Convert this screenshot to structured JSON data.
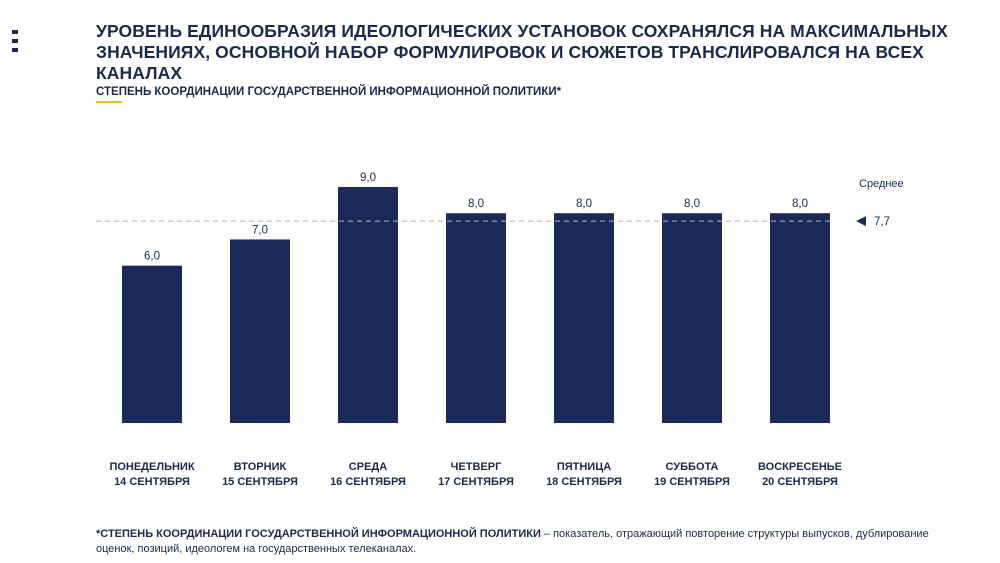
{
  "header": {
    "title": "УРОВЕНЬ ЕДИНООБРАЗИЯ ИДЕОЛОГИЧЕСКИХ УСТАНОВОК СОХРАНЯЛСЯ НА МАКСИМАЛЬНЫХ ЗНАЧЕНИЯХ, ОСНОВНОЙ НАБОР ФОРМУЛИРОВОК И СЮЖЕТОВ ТРАНСЛИРОВАЛСЯ НА ВСЕХ КАНАЛАХ",
    "subtitle": "СТЕПЕНЬ КООРДИНАЦИИ ГОСУДАРСТВЕННОЙ ИНФОРМАЦИОННОЙ ПОЛИТИКИ*"
  },
  "colors": {
    "bar": "#1b2a58",
    "accent": "#f2c500",
    "text": "#1b2a4a",
    "avg_line": "#b0b0b0"
  },
  "icons": {
    "menu": "menu-icon"
  },
  "chart_data": {
    "type": "bar",
    "categories": [
      [
        "ПОНЕДЕЛЬНИК",
        "14 СЕНТЯБРЯ"
      ],
      [
        "ВТОРНИК",
        "15 СЕНТЯБРЯ"
      ],
      [
        "СРЕДА",
        "16 СЕНТЯБРЯ"
      ],
      [
        "ЧЕТВЕРГ",
        "17 СЕНТЯБРЯ"
      ],
      [
        "ПЯТНИЦА",
        "18 СЕНТЯБРЯ"
      ],
      [
        "СУББОТА",
        "19 СЕНТЯБРЯ"
      ],
      [
        "ВОСКРЕСЕНЬЕ",
        "20 СЕНТЯБРЯ"
      ]
    ],
    "values": [
      6.0,
      7.0,
      9.0,
      8.0,
      8.0,
      8.0,
      8.0
    ],
    "value_labels": [
      "6,0",
      "7,0",
      "9,0",
      "8,0",
      "8,0",
      "8,0",
      "8,0"
    ],
    "ylim": [
      0,
      9
    ],
    "average": {
      "label": "Среднее",
      "value": 7.7,
      "value_label": "7,7"
    },
    "grid": false
  },
  "footnote": {
    "term": "*СТЕПЕНЬ КООРДИНАЦИИ ГОСУДАРСТВЕННОЙ ИНФОРМАЦИОННОЙ ПОЛИТИКИ",
    "definition": " –  показатель, отражающий повторение структуры выпусков, дублирование оценок, позиций, идеологем на государственных телеканалах."
  }
}
